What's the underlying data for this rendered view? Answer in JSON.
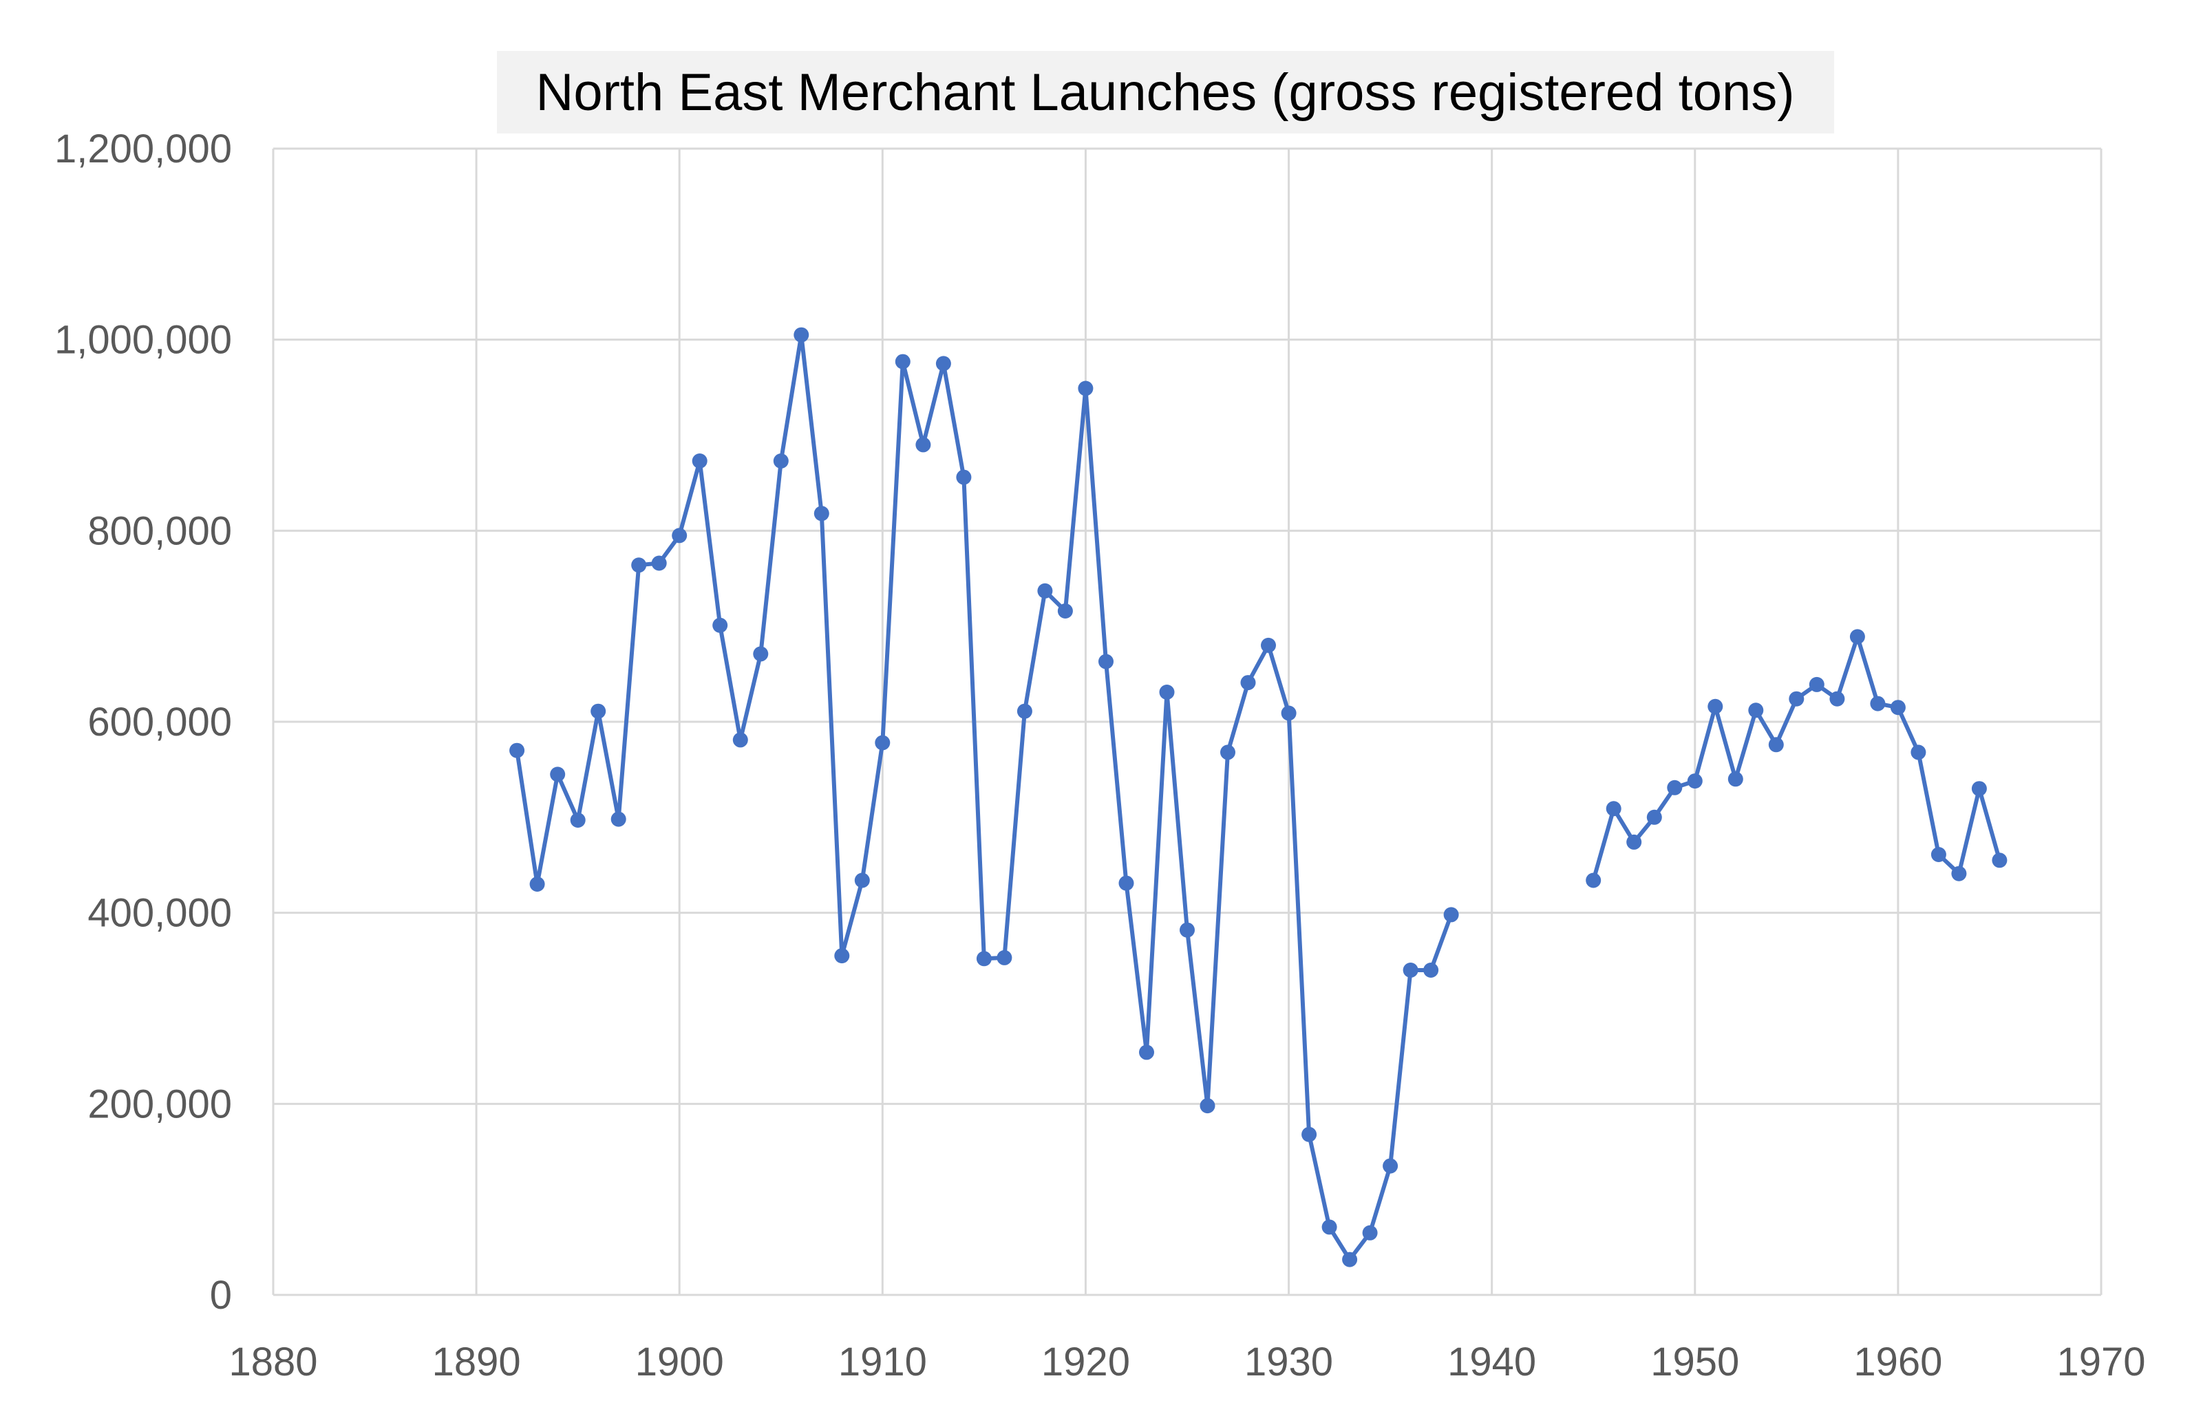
{
  "chart_data": {
    "type": "line",
    "title": "North East Merchant Launches (gross registered tons)",
    "xlabel": "",
    "ylabel": "",
    "xlim": [
      1880,
      1970
    ],
    "ylim": [
      0,
      1200000
    ],
    "x_ticks": [
      1880,
      1890,
      1900,
      1910,
      1920,
      1930,
      1940,
      1950,
      1960,
      1970
    ],
    "x_tick_labels": [
      "1880",
      "1890",
      "1900",
      "1910",
      "1920",
      "1930",
      "1940",
      "1950",
      "1960",
      "1970"
    ],
    "y_ticks": [
      0,
      200000,
      400000,
      600000,
      800000,
      1000000,
      1200000
    ],
    "y_tick_labels": [
      "0",
      "200,000",
      "400,000",
      "600,000",
      "800,000",
      "1,000,000",
      "1,200,000"
    ],
    "grid": true,
    "legend": "none",
    "colors": {
      "series": "#4472C4",
      "grid": "#D9D9D9",
      "title_background": "#F2F2F2",
      "tick_text": "#595959"
    },
    "series": [
      {
        "values": [
          [
            1892,
            570000
          ],
          [
            1893,
            430000
          ],
          [
            1894,
            545000
          ],
          [
            1895,
            497000
          ],
          [
            1896,
            611000
          ],
          [
            1897,
            498000
          ],
          [
            1898,
            764000
          ],
          [
            1899,
            766000
          ],
          [
            1900,
            795000
          ],
          [
            1901,
            873000
          ],
          [
            1902,
            701000
          ],
          [
            1903,
            581000
          ],
          [
            1904,
            671000
          ],
          [
            1905,
            873000
          ],
          [
            1906,
            1005000
          ],
          [
            1907,
            818000
          ],
          [
            1908,
            355000
          ],
          [
            1909,
            434000
          ],
          [
            1910,
            578000
          ],
          [
            1911,
            977000
          ],
          [
            1912,
            890000
          ],
          [
            1913,
            975000
          ],
          [
            1914,
            856000
          ],
          [
            1915,
            352000
          ],
          [
            1916,
            353000
          ],
          [
            1917,
            611000
          ],
          [
            1918,
            737000
          ],
          [
            1919,
            716000
          ],
          [
            1920,
            949000
          ],
          [
            1921,
            663000
          ],
          [
            1922,
            431000
          ],
          [
            1923,
            254000
          ],
          [
            1924,
            631000
          ],
          [
            1925,
            382000
          ],
          [
            1926,
            198000
          ],
          [
            1927,
            568000
          ],
          [
            1928,
            641000
          ],
          [
            1929,
            680000
          ],
          [
            1930,
            609000
          ],
          [
            1931,
            168000
          ],
          [
            1932,
            71000
          ],
          [
            1933,
            37000
          ],
          [
            1934,
            65000
          ],
          [
            1935,
            135000
          ],
          [
            1936,
            340000
          ],
          [
            1937,
            340000
          ],
          [
            1938,
            398000
          ],
          null,
          [
            1945,
            434000
          ],
          [
            1946,
            509000
          ],
          [
            1947,
            474000
          ],
          [
            1948,
            500000
          ],
          [
            1949,
            531000
          ],
          [
            1950,
            538000
          ],
          [
            1951,
            616000
          ],
          [
            1952,
            540000
          ],
          [
            1953,
            612000
          ],
          [
            1954,
            576000
          ],
          [
            1955,
            624000
          ],
          [
            1956,
            639000
          ],
          [
            1957,
            624000
          ],
          [
            1958,
            689000
          ],
          [
            1959,
            619000
          ],
          [
            1960,
            615000
          ],
          [
            1961,
            568000
          ],
          [
            1962,
            461000
          ],
          [
            1963,
            441000
          ],
          [
            1964,
            530000
          ],
          [
            1965,
            455000
          ]
        ]
      }
    ]
  }
}
